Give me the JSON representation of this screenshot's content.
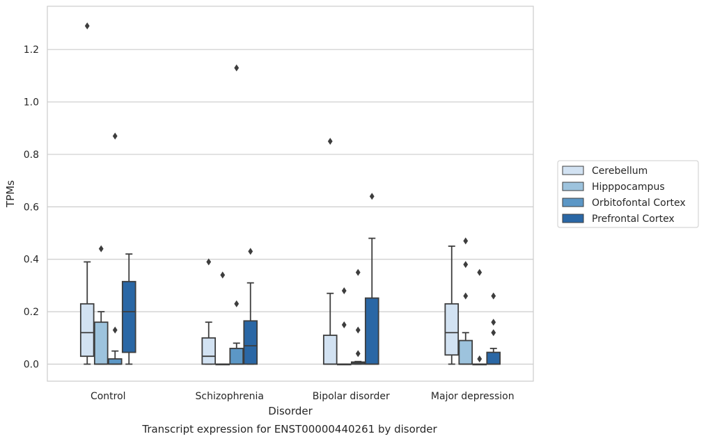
{
  "caption": "Transcript expression for ENST00000440261 by disorder",
  "chart_data": {
    "type": "box",
    "title": "",
    "xlabel": "Disorder",
    "ylabel": "TPMs",
    "ylim": [
      -0.065,
      1.365
    ],
    "yticks": [
      "0.0",
      "0.2",
      "0.4",
      "0.6",
      "0.8",
      "1.0",
      "1.2"
    ],
    "grid": "horizontal",
    "legend_position": "right",
    "categories": [
      "Control",
      "Schizophrenia",
      "Bipolar disorder",
      "Major depression"
    ],
    "series": [
      {
        "name": "Cerebellum",
        "color": "#d2e2f2",
        "boxes": [
          {
            "whislo": 0.0,
            "q1": 0.03,
            "med": 0.12,
            "q3": 0.23,
            "whishi": 0.39,
            "fliers": [
              1.29
            ]
          },
          {
            "whislo": 0.0,
            "q1": 0.0,
            "med": 0.03,
            "q3": 0.1,
            "whishi": 0.16,
            "fliers": [
              0.39
            ]
          },
          {
            "whislo": 0.0,
            "q1": 0.0,
            "med": 0.0,
            "q3": 0.11,
            "whishi": 0.27,
            "fliers": [
              0.85
            ]
          },
          {
            "whislo": 0.0,
            "q1": 0.035,
            "med": 0.12,
            "q3": 0.23,
            "whishi": 0.45,
            "fliers": []
          }
        ]
      },
      {
        "name": "Hipppocampus",
        "color": "#9dc3dd",
        "boxes": [
          {
            "whislo": 0.0,
            "q1": 0.0,
            "med": 0.0,
            "q3": 0.16,
            "whishi": 0.2,
            "fliers": [
              0.44
            ]
          },
          {
            "whislo": 0.0,
            "q1": 0.0,
            "med": 0.0,
            "q3": 0.0,
            "whishi": 0.0,
            "fliers": [
              0.34
            ]
          },
          {
            "whislo": 0.0,
            "q1": 0.0,
            "med": 0.0,
            "q3": 0.0,
            "whishi": 0.0,
            "fliers": [
              0.28,
              0.15
            ]
          },
          {
            "whislo": 0.0,
            "q1": 0.0,
            "med": 0.0,
            "q3": 0.09,
            "whishi": 0.12,
            "fliers": [
              0.47,
              0.38,
              0.26
            ]
          }
        ]
      },
      {
        "name": "Orbitofontal Cortex",
        "color": "#5c97c6",
        "boxes": [
          {
            "whislo": 0.0,
            "q1": 0.0,
            "med": 0.0,
            "q3": 0.02,
            "whishi": 0.05,
            "fliers": [
              0.87,
              0.13
            ]
          },
          {
            "whislo": 0.0,
            "q1": 0.0,
            "med": 0.0,
            "q3": 0.06,
            "whishi": 0.08,
            "fliers": [
              1.13,
              0.23
            ]
          },
          {
            "whislo": 0.0,
            "q1": 0.0,
            "med": 0.005,
            "q3": 0.008,
            "whishi": 0.01,
            "fliers": [
              0.35,
              0.13,
              0.04
            ]
          },
          {
            "whislo": 0.0,
            "q1": 0.0,
            "med": 0.0,
            "q3": 0.0,
            "whishi": 0.0,
            "fliers": [
              0.35,
              0.02
            ]
          }
        ]
      },
      {
        "name": "Prefrontal Cortex",
        "color": "#2a67a5",
        "boxes": [
          {
            "whislo": 0.0,
            "q1": 0.045,
            "med": 0.2,
            "q3": 0.315,
            "whishi": 0.42,
            "fliers": []
          },
          {
            "whislo": 0.0,
            "q1": 0.0,
            "med": 0.07,
            "q3": 0.165,
            "whishi": 0.31,
            "fliers": [
              0.43
            ]
          },
          {
            "whislo": 0.0,
            "q1": 0.0,
            "med": 0.0,
            "q3": 0.252,
            "whishi": 0.48,
            "fliers": [
              0.64
            ]
          },
          {
            "whislo": 0.0,
            "q1": 0.0,
            "med": 0.0,
            "q3": 0.045,
            "whishi": 0.06,
            "fliers": [
              0.26,
              0.16,
              0.12
            ]
          }
        ]
      }
    ]
  }
}
